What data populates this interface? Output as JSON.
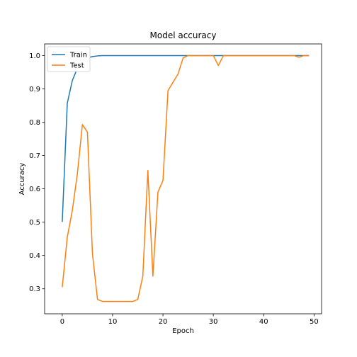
{
  "chart_data": {
    "type": "line",
    "title": "Model accuracy",
    "xlabel": "Epoch",
    "ylabel": "Accuracy",
    "xlim": [
      -3.5,
      51.5
    ],
    "ylim": [
      0.225,
      1.035
    ],
    "xticks": [
      0,
      10,
      20,
      30,
      40,
      50
    ],
    "xtick_labels": [
      "0",
      "10",
      "20",
      "30",
      "40",
      "50"
    ],
    "yticks": [
      0.3,
      0.4,
      0.5,
      0.6,
      0.7,
      0.8,
      0.9,
      1.0
    ],
    "ytick_labels": [
      "0.3",
      "0.4",
      "0.5",
      "0.6",
      "0.7",
      "0.8",
      "0.9",
      "1.0"
    ],
    "grid": false,
    "legend_position": "top-left",
    "x": [
      0,
      1,
      2,
      3,
      4,
      5,
      6,
      7,
      8,
      9,
      10,
      11,
      12,
      13,
      14,
      15,
      16,
      17,
      18,
      19,
      20,
      21,
      22,
      23,
      24,
      25,
      26,
      27,
      28,
      29,
      30,
      31,
      32,
      33,
      34,
      35,
      36,
      37,
      38,
      39,
      40,
      41,
      42,
      43,
      44,
      45,
      46,
      47,
      48,
      49
    ],
    "series": [
      {
        "name": "Train",
        "color": "#1f77b4",
        "values": [
          0.501,
          0.857,
          0.925,
          0.962,
          0.985,
          0.993,
          0.997,
          0.999,
          1.0,
          1.0,
          1.0,
          1.0,
          1.0,
          1.0,
          1.0,
          1.0,
          1.0,
          1.0,
          1.0,
          1.0,
          1.0,
          1.0,
          1.0,
          1.0,
          1.0,
          1.0,
          1.0,
          1.0,
          1.0,
          1.0,
          1.0,
          1.0,
          1.0,
          1.0,
          1.0,
          1.0,
          1.0,
          1.0,
          1.0,
          1.0,
          1.0,
          1.0,
          1.0,
          1.0,
          1.0,
          1.0,
          1.0,
          1.0,
          1.0,
          1.0
        ]
      },
      {
        "name": "Test",
        "color": "#ff7f0e",
        "values": [
          0.305,
          0.455,
          0.535,
          0.645,
          0.793,
          0.77,
          0.405,
          0.268,
          0.262,
          0.262,
          0.262,
          0.262,
          0.262,
          0.262,
          0.262,
          0.268,
          0.338,
          0.655,
          0.338,
          0.59,
          0.625,
          0.895,
          0.92,
          0.945,
          0.993,
          1.0,
          1.0,
          1.0,
          1.0,
          1.0,
          1.0,
          0.97,
          1.0,
          1.0,
          1.0,
          1.0,
          1.0,
          1.0,
          1.0,
          1.0,
          1.0,
          1.0,
          1.0,
          1.0,
          1.0,
          1.0,
          1.0,
          0.995,
          1.0,
          1.0
        ]
      }
    ]
  }
}
